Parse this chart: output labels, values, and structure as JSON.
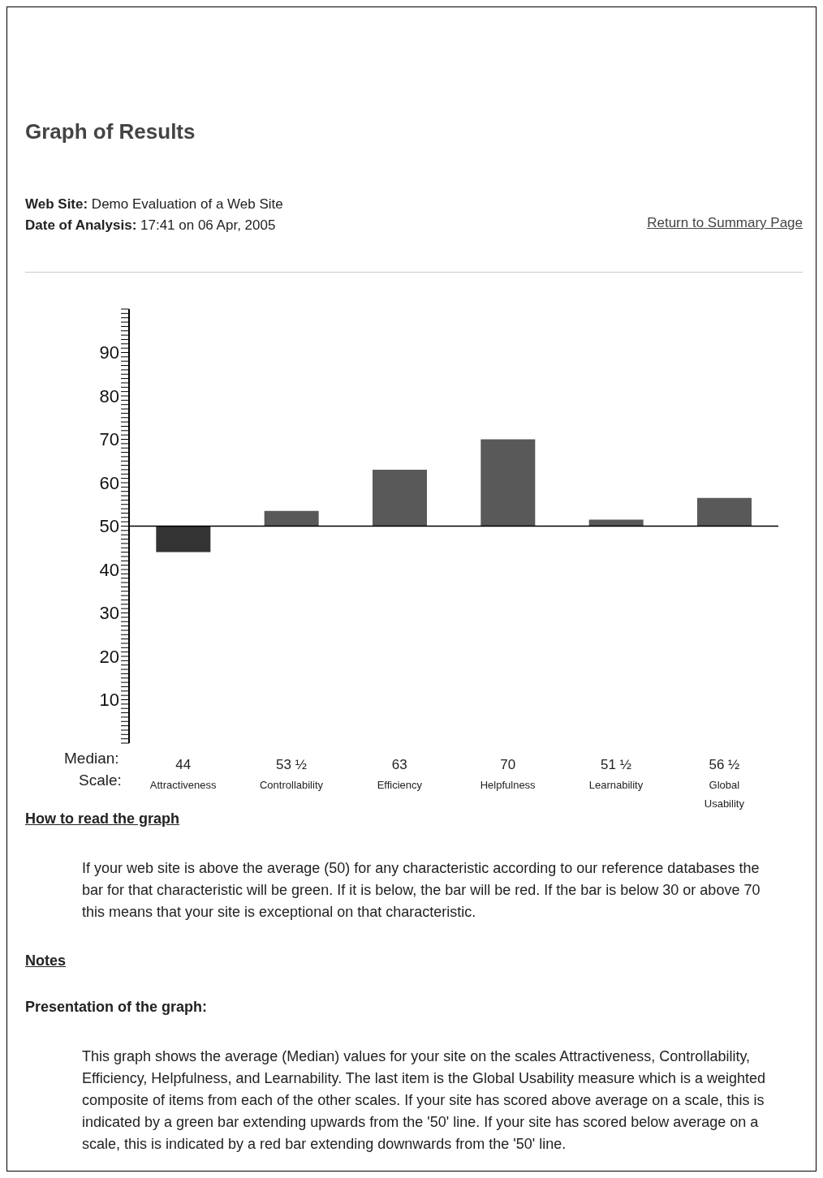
{
  "chart_data": {
    "type": "bar",
    "title": "Graph of Results",
    "categories": [
      "Attractiveness",
      "Controllability",
      "Efficiency",
      "Helpfulness",
      "Learnability",
      "Global Usability"
    ],
    "base": [
      50,
      50,
      50,
      50,
      50,
      50
    ],
    "values": [
      -6,
      3.5,
      13,
      20,
      1.5,
      6.5
    ],
    "value_labels": [
      "44",
      "53 ½",
      "63",
      "70",
      "51 ½",
      "56 ½"
    ],
    "colors": [
      "#333333",
      "#595959",
      "#595959",
      "#595959",
      "#595959",
      "#595959"
    ],
    "ylim": [
      0,
      100
    ],
    "yticks": [
      {
        "value": 0,
        "label": null
      },
      {
        "value": 1,
        "label": null
      },
      {
        "value": 2,
        "label": null
      },
      {
        "value": 3,
        "label": null
      },
      {
        "value": 4,
        "label": null
      },
      {
        "value": 5,
        "label": null
      },
      {
        "value": 6,
        "label": null
      },
      {
        "value": 7,
        "label": null
      },
      {
        "value": 8,
        "label": null
      },
      {
        "value": 9,
        "label": null
      },
      10,
      {
        "value": 11,
        "label": null
      },
      {
        "value": 12,
        "label": null
      },
      {
        "value": 13,
        "label": null
      },
      {
        "value": 14,
        "label": null
      },
      {
        "value": 15,
        "label": null
      },
      {
        "value": 16,
        "label": null
      },
      {
        "value": 17,
        "label": null
      },
      {
        "value": 18,
        "label": null
      },
      {
        "value": 19,
        "label": null
      },
      20,
      {
        "value": 21,
        "label": null
      },
      {
        "value": 22,
        "label": null
      },
      {
        "value": 23,
        "label": null
      },
      {
        "value": 24,
        "label": null
      },
      {
        "value": 25,
        "label": null
      },
      {
        "value": 26,
        "label": null
      },
      {
        "value": 27,
        "label": null
      },
      {
        "value": 28,
        "label": null
      },
      {
        "value": 29,
        "label": null
      },
      30,
      {
        "value": 31,
        "label": null
      },
      {
        "value": 32,
        "label": null
      },
      {
        "value": 33,
        "label": null
      },
      {
        "value": 34,
        "label": null
      },
      {
        "value": 35,
        "label": null
      },
      {
        "value": 36,
        "label": null
      },
      {
        "value": 37,
        "label": null
      },
      {
        "value": 38,
        "label": null
      },
      {
        "value": 39,
        "label": null
      },
      40,
      {
        "value": 41,
        "label": null
      },
      {
        "value": 42,
        "label": null
      },
      {
        "value": 43,
        "label": null
      },
      {
        "value": 44,
        "label": null
      },
      {
        "value": 45,
        "label": null
      },
      {
        "value": 46,
        "label": null
      },
      {
        "value": 47,
        "label": null
      },
      {
        "value": 48,
        "label": null
      },
      {
        "value": 49,
        "label": null
      },
      50,
      {
        "value": 51,
        "label": null
      },
      {
        "value": 52,
        "label": null
      },
      {
        "value": 53,
        "label": null
      },
      {
        "value": 54,
        "label": null
      },
      {
        "value": 55,
        "label": null
      },
      {
        "value": 56,
        "label": null
      },
      {
        "value": 57,
        "label": null
      },
      {
        "value": 58,
        "label": null
      },
      {
        "value": 59,
        "label": null
      },
      60,
      {
        "value": 61,
        "label": null
      },
      {
        "value": 62,
        "label": null
      },
      {
        "value": 63,
        "label": null
      },
      {
        "value": 64,
        "label": null
      },
      {
        "value": 65,
        "label": null
      },
      {
        "value": 66,
        "label": null
      },
      {
        "value": 67,
        "label": null
      },
      {
        "value": 68,
        "label": null
      },
      {
        "value": 69,
        "label": null
      },
      70,
      {
        "value": 71,
        "label": null
      },
      {
        "value": 72,
        "label": null
      },
      {
        "value": 73,
        "label": null
      },
      {
        "value": 74,
        "label": null
      },
      {
        "value": 75,
        "label": null
      },
      {
        "value": 76,
        "label": null
      },
      {
        "value": 77,
        "label": null
      },
      {
        "value": 78,
        "label": null
      },
      {
        "value": 79,
        "label": null
      },
      80,
      {
        "value": 81,
        "label": null
      },
      {
        "value": 82,
        "label": null
      },
      {
        "value": 83,
        "label": null
      },
      {
        "value": 84,
        "label": null
      },
      {
        "value": 85,
        "label": null
      },
      {
        "value": 86,
        "label": null
      },
      {
        "value": 87,
        "label": null
      },
      {
        "value": 88,
        "label": null
      },
      {
        "value": 89,
        "label": null
      },
      90,
      {
        "value": 91,
        "label": null
      },
      {
        "value": 92,
        "label": null
      },
      {
        "value": 93,
        "label": null
      },
      {
        "value": 94,
        "label": null
      },
      {
        "value": 95,
        "label": null
      },
      {
        "value": 96,
        "label": null
      },
      {
        "value": 97,
        "label": null
      },
      {
        "value": 98,
        "label": null
      },
      {
        "value": 99,
        "label": null
      },
      {
        "value": 100,
        "label": null
      }
    ],
    "ref_lines": [
      {
        "axis": "y",
        "value": 50,
        "color": "#000000"
      }
    ],
    "grid": false,
    "legend": false,
    "annotations": [
      "Web Site: Demo Evaluation of a Web Site",
      "Date of Analysis: 17:41 on 06 Apr, 2005",
      "Return to Summary Page",
      "Median:",
      "Scale:",
      "How to read the graph",
      "If your web site is above the average (50) for any characteristic according to our reference databases the bar for that characteristic will be green. If it is below, the bar will be red. If the bar is below 30 or above 70 this means that your site is exceptional on that characteristic.",
      "Notes",
      "Presentation of the graph:",
      "This graph shows the average (Median) values for your site on the scales Attractiveness, Controllability, Efficiency, Helpfulness, and Learnability. The last item is the Global Usability measure which is a weighted composite of items from each of the other scales. If your site has scored above average on a scale, this is indicated by a green bar extending upwards from the '50' line. If your site has scored below average on a scale, this is indicated by a red bar extending downwards from the '50' line."
    ]
  }
}
